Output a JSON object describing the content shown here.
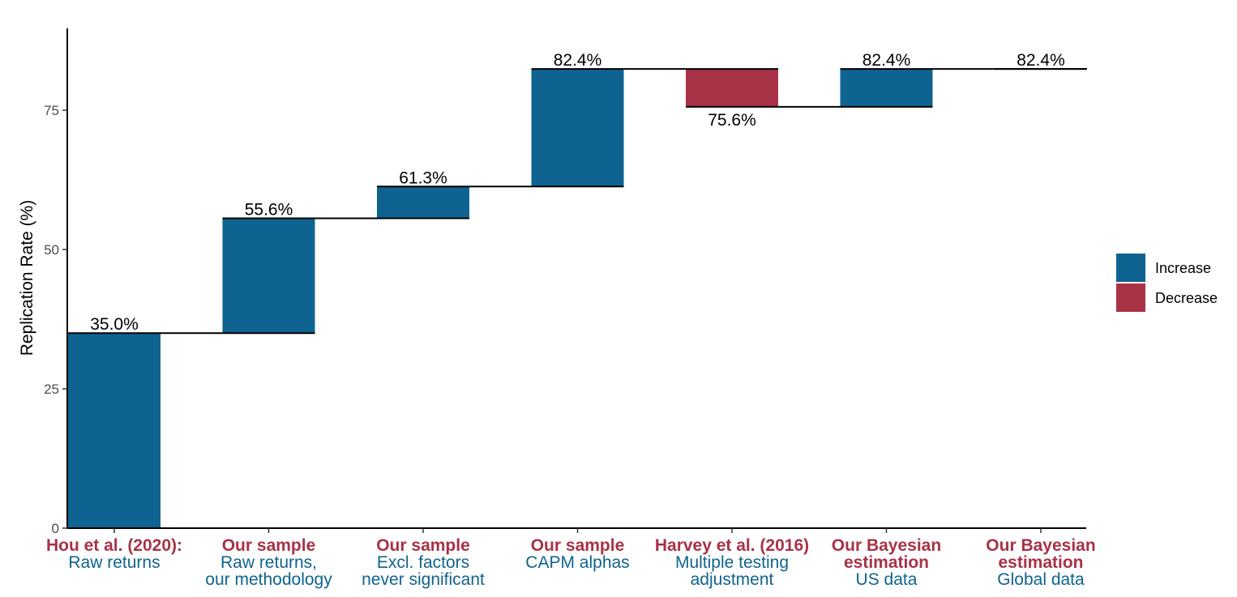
{
  "chart_data": {
    "type": "bar",
    "subtype": "waterfall",
    "title": "",
    "xlabel": "",
    "ylabel": "Replication Rate (%)",
    "ylim": [
      0,
      90
    ],
    "yticks": [
      0,
      25,
      50,
      75
    ],
    "grid": false,
    "legend_position": "right",
    "colors": {
      "Increase": "#0f6391",
      "Decrease": "#a83246",
      "source_label": "#a83246",
      "detail_label": "#0f6391"
    },
    "legend": [
      {
        "name": "Increase",
        "color": "#0f6391"
      },
      {
        "name": "Decrease",
        "color": "#a83246"
      }
    ],
    "categories": [
      {
        "source": "Hou et al. (2020):",
        "detail": [
          "Raw returns"
        ]
      },
      {
        "source": "Our sample",
        "detail": [
          "Raw returns,",
          "our methodology"
        ]
      },
      {
        "source": "Our sample",
        "detail": [
          "Excl. factors",
          "never significant"
        ]
      },
      {
        "source": "Our sample",
        "detail": [
          "CAPM alphas"
        ]
      },
      {
        "source": "Harvey et al. (2016)",
        "detail": [
          "Multiple testing",
          "adjustment"
        ]
      },
      {
        "source": "Our Bayesian\nestimation",
        "detail": [
          "US data"
        ]
      },
      {
        "source": "Our Bayesian\nestimation",
        "detail": [
          "Global data"
        ]
      }
    ],
    "steps": [
      {
        "start": 0,
        "end": 35.0,
        "direction": "Increase",
        "label": "35.0%"
      },
      {
        "start": 35.0,
        "end": 55.6,
        "direction": "Increase",
        "label": "55.6%"
      },
      {
        "start": 55.6,
        "end": 61.3,
        "direction": "Increase",
        "label": "61.3%"
      },
      {
        "start": 61.3,
        "end": 82.4,
        "direction": "Increase",
        "label": "82.4%"
      },
      {
        "start": 82.4,
        "end": 75.6,
        "direction": "Decrease",
        "label": "75.6%"
      },
      {
        "start": 75.6,
        "end": 82.4,
        "direction": "Increase",
        "label": "82.4%"
      },
      {
        "start": 82.4,
        "end": 82.4,
        "direction": "Increase",
        "label": "82.4%"
      }
    ]
  }
}
